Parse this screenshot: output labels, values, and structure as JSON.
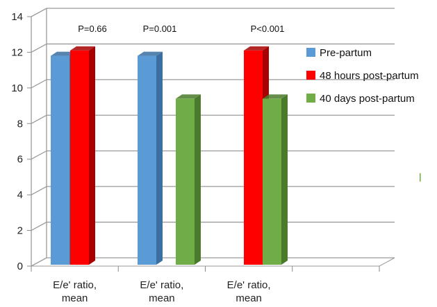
{
  "chart_data": {
    "type": "bar",
    "categories": [
      "E/e' ratio,\nmean",
      "E/e' ratio,\nmean",
      "E/e' ratio,\nmean"
    ],
    "series": [
      {
        "name": "Pre-partum",
        "color": "#5b9bd5",
        "side": "#3a6fa0",
        "values": [
          11.8,
          11.8,
          null
        ]
      },
      {
        "name": "48 hours post-partum",
        "color": "#ff0000",
        "side": "#a80000",
        "values": [
          12.1,
          null,
          12.1
        ]
      },
      {
        "name": "40 days post-partum",
        "color": "#70ad47",
        "side": "#4a7a2c",
        "values": [
          null,
          9.4,
          9.4
        ]
      }
    ],
    "annotations": [
      "P=0.66",
      "P=0.001",
      "P<0.001"
    ],
    "ylim": [
      0,
      14
    ],
    "yticks": [
      0,
      2,
      4,
      6,
      8,
      10,
      12,
      14
    ],
    "grid": true,
    "legend": "right",
    "title": "",
    "xlabel": "",
    "ylabel": ""
  }
}
